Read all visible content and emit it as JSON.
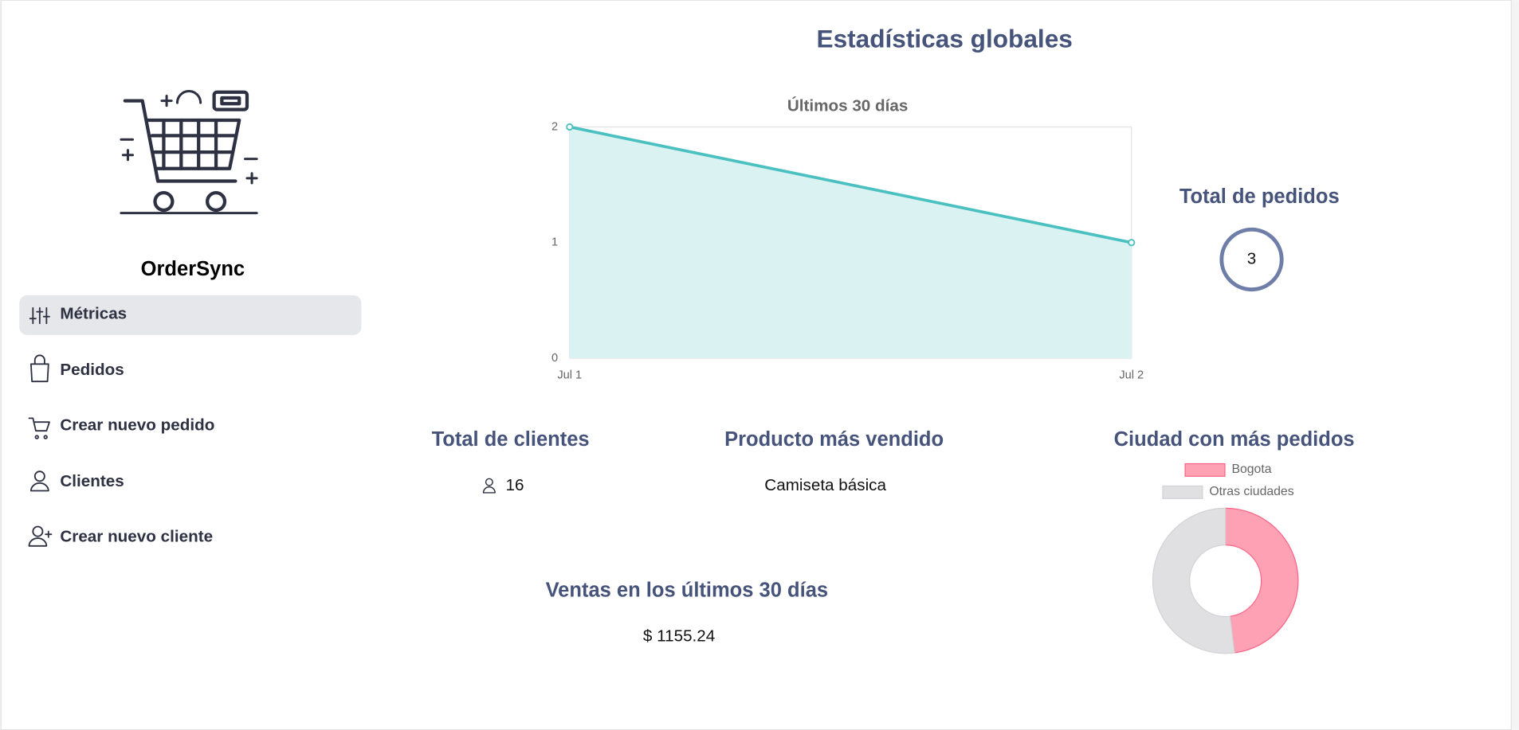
{
  "page_title": "Estadísticas globales",
  "sidebar": {
    "brand": "OrderSync",
    "nav": [
      "Métricas",
      "Pedidos",
      "Crear nuevo pedido",
      "Clientes",
      "Crear nuevo cliente"
    ]
  },
  "chart_data": [
    {
      "type": "line",
      "title": "Últimos 30 días",
      "categories": [
        "Jul 1",
        "Jul 2"
      ],
      "values": [
        2,
        1
      ],
      "color": "#4bc0c0",
      "fill": "#dbf2f2",
      "ylim": [
        0,
        2
      ],
      "yticks": [
        0,
        1,
        2
      ],
      "grid": true
    },
    {
      "type": "doughnut",
      "title": "Ciudad con más pedidos",
      "categories": [
        "Bogota",
        "Otras ciudades"
      ],
      "values": [
        48,
        52
      ],
      "colors": [
        "#ffa1b5",
        "#e0e0e2"
      ],
      "border_colors": [
        "#ff6384",
        "#d2d2d6"
      ],
      "legend": "top"
    }
  ],
  "cards": {
    "total_pedidos": {
      "title": "Total de pedidos",
      "value": "3"
    },
    "total_clientes": {
      "title": "Total de clientes",
      "value": "16"
    },
    "producto": {
      "title": "Producto más vendido",
      "value": "Camiseta básica"
    },
    "ventas": {
      "title": "Ventas en los últimos 30 días",
      "value": "$ 1155.24"
    }
  }
}
